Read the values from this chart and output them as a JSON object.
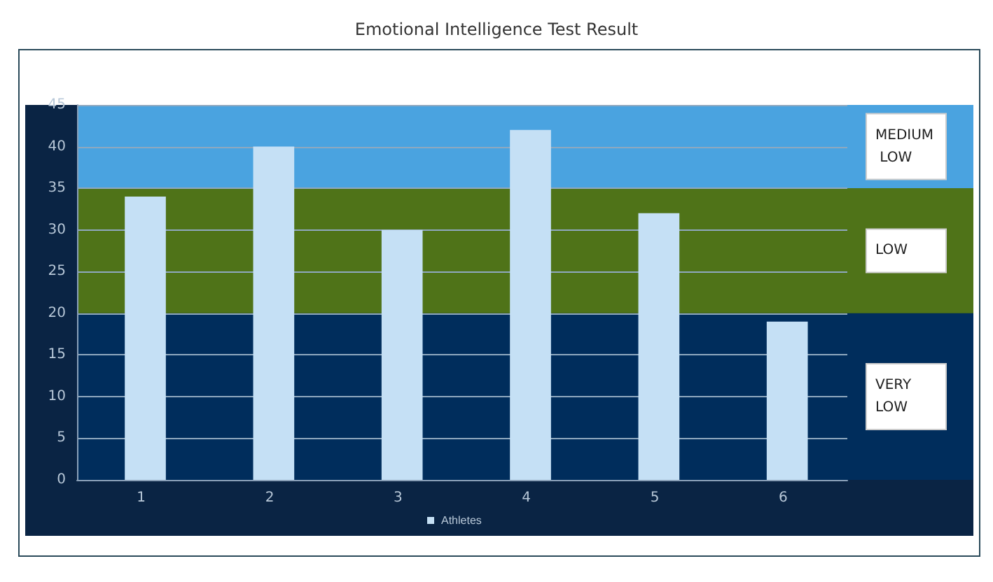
{
  "chart_data": {
    "type": "bar",
    "title": "Emotional Intelligence Test Result",
    "categories": [
      "1",
      "2",
      "3",
      "4",
      "5",
      "6"
    ],
    "series": [
      {
        "name": "Athletes",
        "color": "#c5e0f5",
        "values": [
          34,
          40,
          30,
          42,
          32,
          19
        ]
      }
    ],
    "ylim": [
      0,
      45
    ],
    "yticks": [
      0,
      5,
      10,
      15,
      20,
      25,
      30,
      35,
      40,
      45
    ],
    "grid": "y",
    "legend": "bottom",
    "bands": [
      {
        "axis": "y",
        "from": 0,
        "to": 20,
        "label": "VERY LOW",
        "color": "#002d5c"
      },
      {
        "axis": "y",
        "from": 20,
        "to": 35,
        "label": "LOW",
        "color": "#4f7318"
      },
      {
        "axis": "y",
        "from": 35,
        "to": 45,
        "label": "MEDIUM LOW",
        "color": "#4aa3e0"
      }
    ]
  }
}
